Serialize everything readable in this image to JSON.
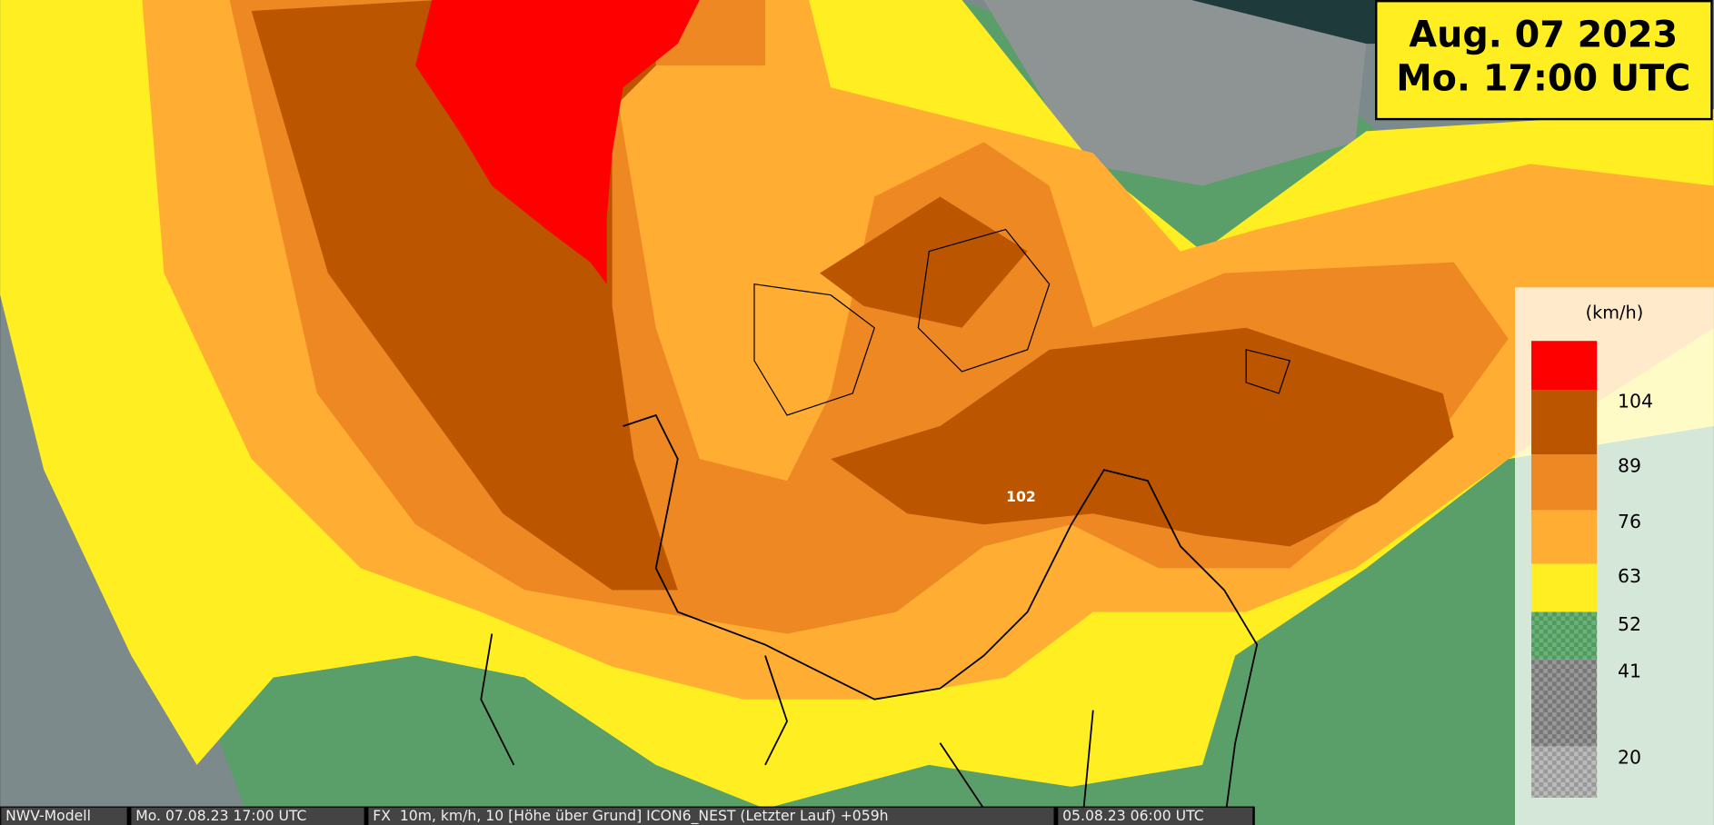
{
  "date_box": {
    "line1": "Aug. 07 2023",
    "line2": "Mo. 17:00 UTC"
  },
  "legend": {
    "unit": "(km/h)",
    "labels": [
      "104",
      "89",
      "76",
      "63",
      "52",
      "41",
      "20"
    ]
  },
  "map_labels": [
    "102"
  ],
  "footer": [
    "NWV-Modell",
    "Mo. 07.08.23 17:00 UTC",
    "FX  10m, km/h, 10 [Höhe über Grund] ICON6_NEST (Letzter Lauf) +059h",
    "05.08.23 06:00 UTC"
  ]
}
